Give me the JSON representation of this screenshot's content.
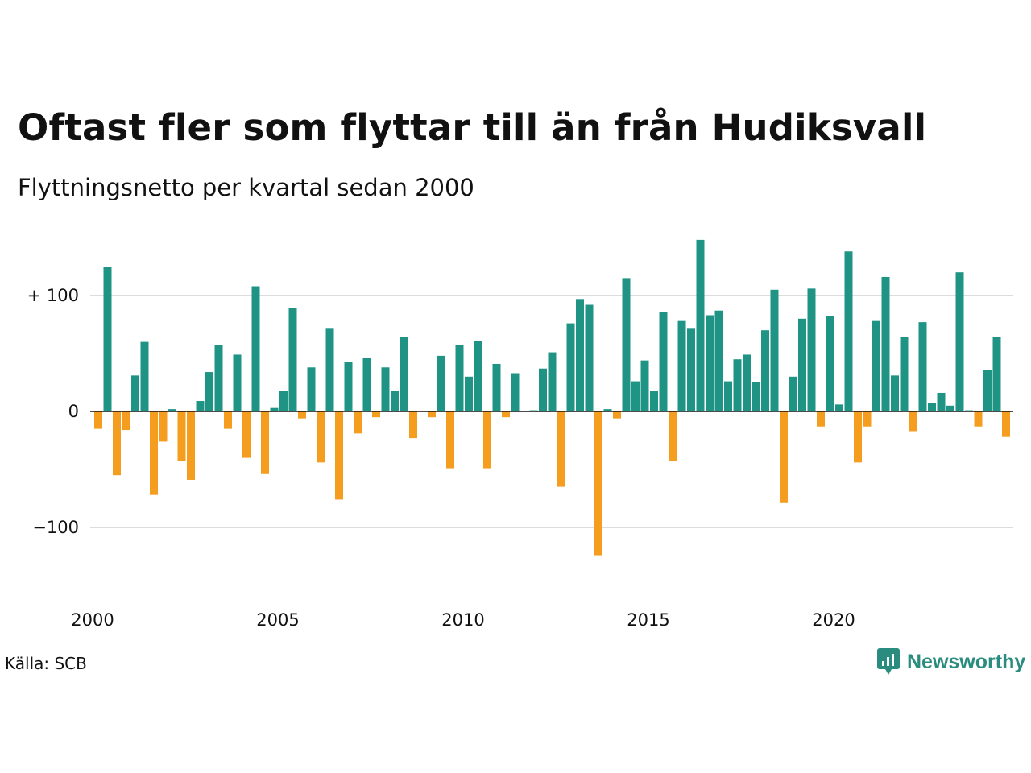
{
  "chart_data": {
    "type": "bar",
    "title": "Oftast fler som flyttar till än från Hudiksvall",
    "subtitle": "Flyttningsnetto per kvartal sedan 2000",
    "source": "Källa: SCB",
    "brand": "Newsworthy",
    "start_year": 2000,
    "ylim": [
      -150,
      150
    ],
    "y_ticks": [
      {
        "value": 100,
        "label": "+ 100"
      },
      {
        "value": 0,
        "label": "0"
      },
      {
        "value": -100,
        "label": "−100"
      }
    ],
    "x_ticks": [
      "2000",
      "2005",
      "2010",
      "2015",
      "2020"
    ],
    "colors": {
      "positive": "#1f9485",
      "negative": "#f59d1e",
      "grid": "#dcdcdc",
      "baseline": "#111111"
    },
    "values": [
      -15,
      125,
      -55,
      -16,
      31,
      60,
      -72,
      -26,
      2,
      -43,
      -59,
      9,
      34,
      57,
      -15,
      49,
      -40,
      108,
      -54,
      3,
      18,
      89,
      -6,
      38,
      -44,
      72,
      -76,
      43,
      -19,
      46,
      -5,
      38,
      18,
      64,
      -23,
      0,
      -5,
      48,
      -49,
      57,
      30,
      61,
      -49,
      41,
      -5,
      33,
      0,
      1,
      37,
      51,
      -65,
      76,
      97,
      92,
      -124,
      2,
      -6,
      115,
      26,
      44,
      18,
      86,
      -43,
      78,
      72,
      148,
      83,
      87,
      26,
      45,
      49,
      25,
      70,
      105,
      -79,
      30,
      80,
      106,
      -13,
      82,
      6,
      138,
      -44,
      -13,
      78,
      116,
      31,
      64,
      -17,
      77,
      7,
      16,
      5,
      120,
      1,
      -13,
      36,
      64,
      -22
    ]
  }
}
